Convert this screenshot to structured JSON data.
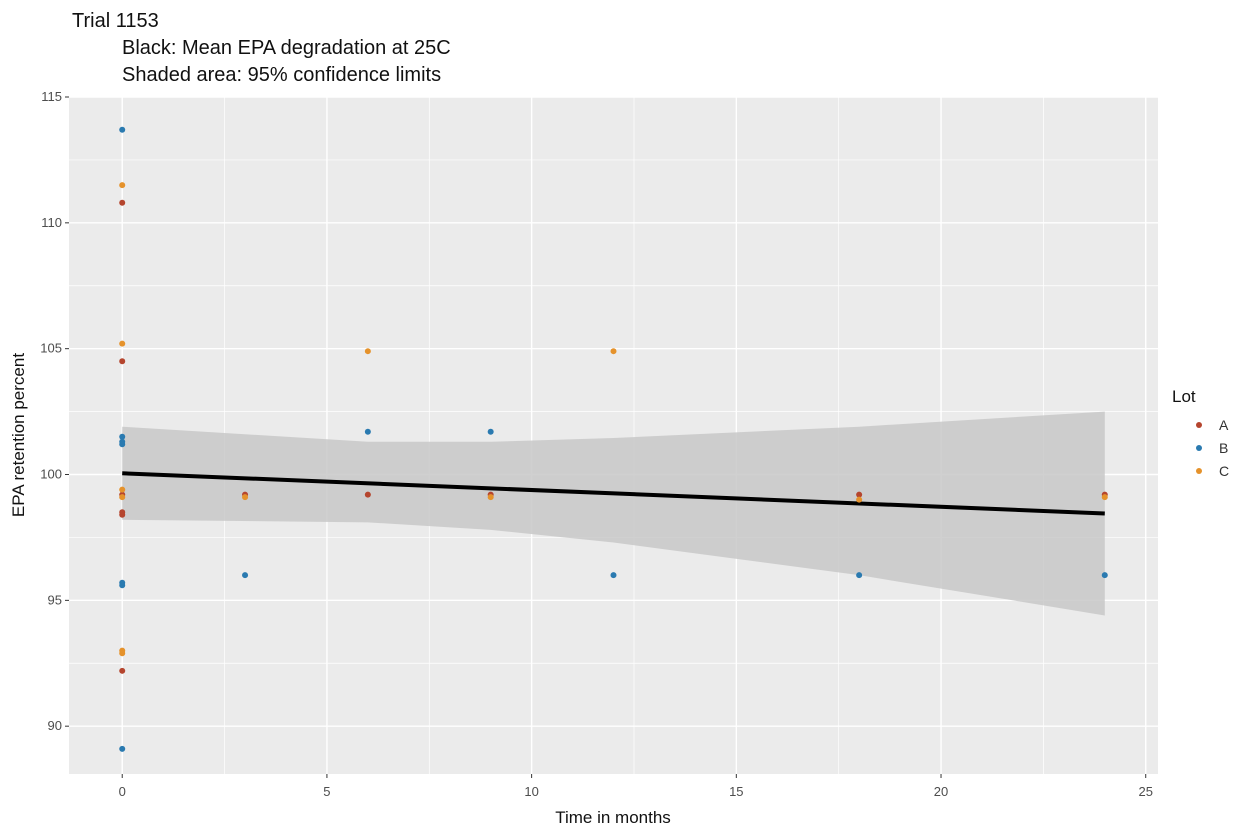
{
  "chart_data": {
    "type": "scatter",
    "title": "Trial 1153",
    "subtitle_lines": [
      "Black: Mean EPA degradation at 25C",
      "Shaded area: 95% confidence limits"
    ],
    "xlabel": "Time in months",
    "ylabel": "EPA retention percent",
    "xlim": [
      -1.3,
      25.3
    ],
    "ylim": [
      88.1,
      115.0
    ],
    "x_ticks": [
      0,
      5,
      10,
      15,
      20,
      25
    ],
    "y_ticks": [
      90,
      95,
      100,
      105,
      110,
      115
    ],
    "grid": true,
    "legend": {
      "title": "Lot",
      "placement": "right",
      "entries": [
        {
          "label": "A",
          "color": "#b5452e"
        },
        {
          "label": "B",
          "color": "#2a7ab0"
        },
        {
          "label": "C",
          "color": "#e5922b"
        }
      ]
    },
    "series": [
      {
        "name": "A",
        "color": "#b5452e",
        "points": [
          [
            0,
            110.8
          ],
          [
            0,
            104.5
          ],
          [
            0,
            99.2
          ],
          [
            0,
            98.4
          ],
          [
            0,
            98.5
          ],
          [
            0,
            92.2
          ],
          [
            3,
            99.2
          ],
          [
            6,
            99.2
          ],
          [
            9,
            99.2
          ],
          [
            18,
            99.2
          ],
          [
            24,
            99.2
          ]
        ]
      },
      {
        "name": "B",
        "color": "#2a7ab0",
        "points": [
          [
            0,
            113.7
          ],
          [
            0,
            101.5
          ],
          [
            0,
            101.3
          ],
          [
            0,
            101.2
          ],
          [
            0,
            95.7
          ],
          [
            0,
            95.6
          ],
          [
            0,
            89.1
          ],
          [
            3,
            96.0
          ],
          [
            6,
            101.7
          ],
          [
            9,
            101.7
          ],
          [
            12,
            96.0
          ],
          [
            18,
            96.0
          ],
          [
            24,
            96.0
          ]
        ]
      },
      {
        "name": "C",
        "color": "#e5922b",
        "points": [
          [
            0,
            111.5
          ],
          [
            0,
            105.2
          ],
          [
            0,
            99.4
          ],
          [
            0,
            99.1
          ],
          [
            0,
            93.0
          ],
          [
            0,
            92.9
          ],
          [
            3,
            99.1
          ],
          [
            6,
            104.9
          ],
          [
            9,
            99.1
          ],
          [
            12,
            104.9
          ],
          [
            18,
            99.0
          ],
          [
            24,
            99.1
          ]
        ]
      }
    ],
    "fit_line": {
      "color": "#000000",
      "x": [
        0,
        24
      ],
      "y": [
        100.05,
        98.45
      ]
    },
    "confidence_band": {
      "color": "#c8c8c8",
      "x": [
        0,
        6,
        9,
        12,
        18,
        24
      ],
      "upper": [
        101.9,
        101.3,
        101.3,
        101.45,
        101.9,
        102.5
      ],
      "lower": [
        98.2,
        98.1,
        97.8,
        97.3,
        96.0,
        94.4
      ]
    },
    "colors": {
      "panel_background": "#ebebeb",
      "grid": "#ffffff"
    }
  }
}
